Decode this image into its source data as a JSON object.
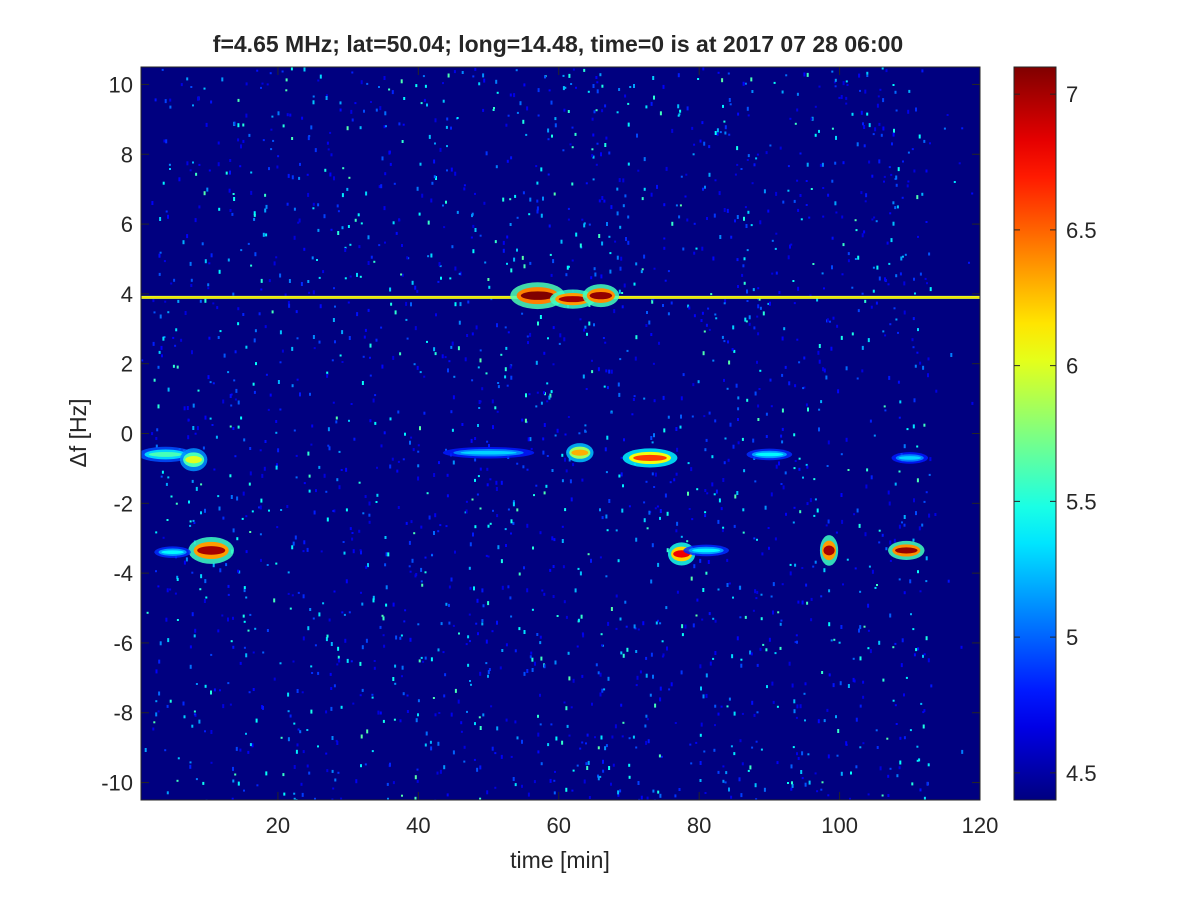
{
  "chart_data": {
    "type": "heatmap",
    "title": "f=4.65 MHz;  lat=50.04; long=14.48, time=0 is at 2017 07 28 06:00",
    "xlabel": "time [min]",
    "ylabel": "Δf [Hz]",
    "xlim": [
      0.5,
      120
    ],
    "ylim": [
      -10.5,
      10.5
    ],
    "x_ticks": [
      20,
      40,
      60,
      80,
      100,
      120
    ],
    "y_ticks": [
      -10,
      -8,
      -6,
      -4,
      -2,
      0,
      2,
      4,
      6,
      8,
      10
    ],
    "colormap": "jet",
    "colorbar": {
      "range": [
        4.4,
        7.1
      ],
      "ticks": [
        4.5,
        5,
        5.5,
        6,
        6.5,
        7
      ]
    },
    "background_value": 4.4,
    "features": [
      {
        "kind": "line",
        "y": 3.9,
        "x_start": 0.5,
        "x_end": 120,
        "value": 6.0
      },
      {
        "kind": "blob",
        "x": 57,
        "y": 3.95,
        "width_min": 6,
        "height_hz": 0.35,
        "value": 7.1
      },
      {
        "kind": "blob",
        "x": 62,
        "y": 3.85,
        "width_min": 5,
        "height_hz": 0.25,
        "value": 7.0
      },
      {
        "kind": "blob",
        "x": 66,
        "y": 3.95,
        "width_min": 4,
        "height_hz": 0.3,
        "value": 7.05
      },
      {
        "kind": "blob",
        "x": 4,
        "y": -0.6,
        "width_min": 6,
        "height_hz": 0.2,
        "value": 5.6
      },
      {
        "kind": "blob",
        "x": 8,
        "y": -0.75,
        "width_min": 3,
        "height_hz": 0.3,
        "value": 6.0
      },
      {
        "kind": "blob",
        "x": 63,
        "y": -0.55,
        "width_min": 3,
        "height_hz": 0.25,
        "value": 6.3
      },
      {
        "kind": "blob",
        "x": 73,
        "y": -0.7,
        "width_min": 6,
        "height_hz": 0.25,
        "value": 6.6
      },
      {
        "kind": "blob",
        "x": 50,
        "y": -0.55,
        "width_min": 10,
        "height_hz": 0.15,
        "value": 5.3
      },
      {
        "kind": "blob",
        "x": 90,
        "y": -0.6,
        "width_min": 5,
        "height_hz": 0.15,
        "value": 5.4
      },
      {
        "kind": "blob",
        "x": 110,
        "y": -0.7,
        "width_min": 4,
        "height_hz": 0.15,
        "value": 5.3
      },
      {
        "kind": "blob",
        "x": 10.5,
        "y": -3.35,
        "width_min": 5,
        "height_hz": 0.35,
        "value": 7.0
      },
      {
        "kind": "blob",
        "x": 5,
        "y": -3.4,
        "width_min": 4,
        "height_hz": 0.15,
        "value": 5.4
      },
      {
        "kind": "blob",
        "x": 77.5,
        "y": -3.45,
        "width_min": 3,
        "height_hz": 0.3,
        "value": 6.8
      },
      {
        "kind": "blob",
        "x": 81,
        "y": -3.35,
        "width_min": 5,
        "height_hz": 0.15,
        "value": 5.4
      },
      {
        "kind": "blob",
        "x": 98.5,
        "y": -3.35,
        "width_min": 2,
        "height_hz": 0.4,
        "value": 7.0
      },
      {
        "kind": "blob",
        "x": 109.5,
        "y": -3.35,
        "width_min": 4,
        "height_hz": 0.25,
        "value": 7.05
      }
    ]
  }
}
